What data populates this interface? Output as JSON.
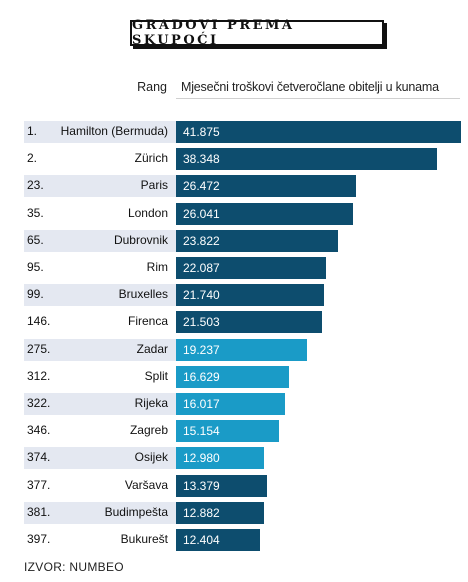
{
  "title": "GRADOVI PREMA SKUPOĆI",
  "header": {
    "rank_label": "Rang",
    "value_label": "Mjesečni troškovi četveročlane obitelji u kunama"
  },
  "source": "IZVOR: NUMBEO",
  "colors": {
    "dark_bar": "#0d4d6e",
    "light_bar": "#1a9bc7",
    "row_bg_a": "#e4e8f1",
    "row_bg_b": "#ffffff"
  },
  "chart_data": {
    "type": "bar",
    "orientation": "horizontal",
    "title": "GRADOVI PREMA SKUPOĆI",
    "xlabel": "Mjesečni troškovi četveročlane obitelji u kunama",
    "ylabel": "Rang",
    "xlim": [
      0,
      41875
    ],
    "ranks": [
      "1.",
      "2.",
      "23.",
      "35.",
      "65.",
      "95.",
      "99.",
      "146.",
      "275.",
      "312.",
      "322.",
      "346.",
      "374.",
      "377.",
      "381.",
      "397."
    ],
    "categories": [
      "Hamilton (Bermuda)",
      "Zürich",
      "Paris",
      "London",
      "Dubrovnik",
      "Rim",
      "Bruxelles",
      "Firenca",
      "Zadar",
      "Split",
      "Rijeka",
      "Zagreb",
      "Osijek",
      "Varšava",
      "Budimpešta",
      "Bukurešt"
    ],
    "values": [
      41875,
      38348,
      26472,
      26041,
      23822,
      22087,
      21740,
      21503,
      19237,
      16629,
      16017,
      15154,
      12980,
      13379,
      12882,
      12404
    ],
    "value_labels": [
      "41.875",
      "38.348",
      "26.472",
      "26.041",
      "23.822",
      "22.087",
      "21.740",
      "21.503",
      "19.237",
      "16.629",
      "16.017",
      "15.154",
      "12.980",
      "13.379",
      "12.882",
      "12.404"
    ],
    "highlighted": [
      false,
      false,
      false,
      false,
      false,
      false,
      false,
      false,
      true,
      true,
      true,
      true,
      true,
      false,
      false,
      false
    ],
    "legend": "none",
    "grid": false
  }
}
